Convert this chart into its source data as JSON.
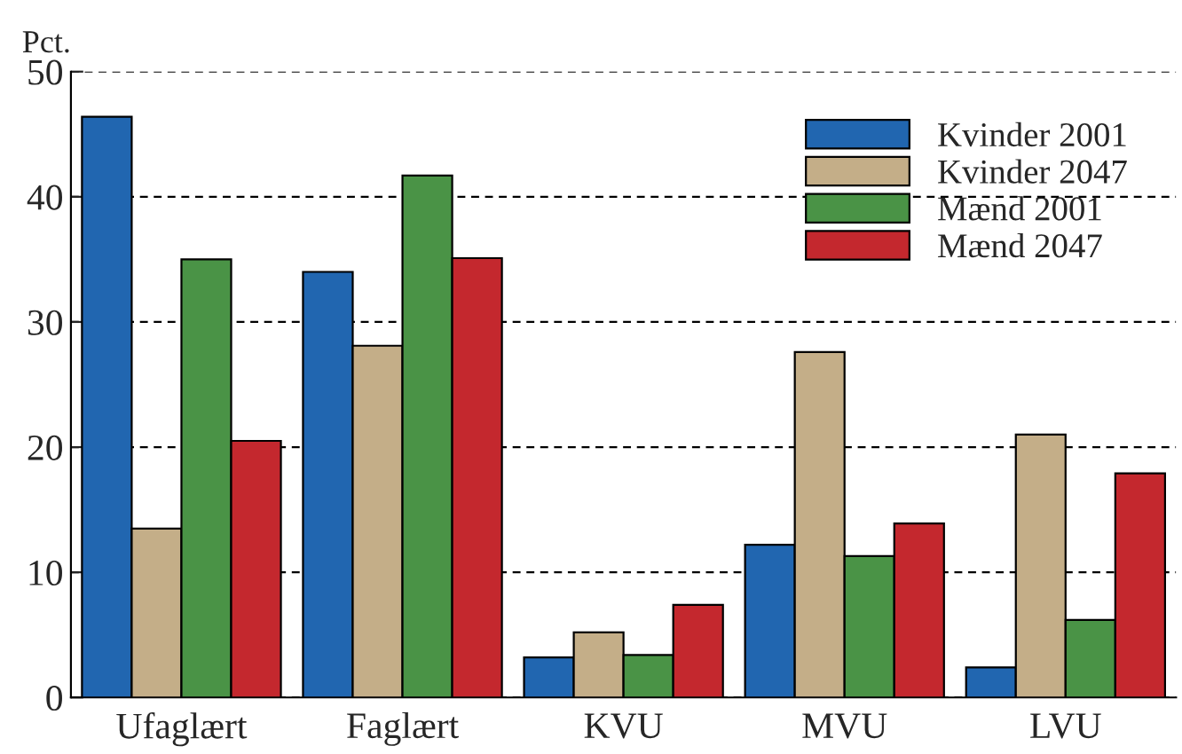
{
  "chart_data": {
    "type": "bar",
    "ylabel": "Pct.",
    "categories": [
      "Ufaglært",
      "Faglært",
      "KVU",
      "MVU",
      "LVU"
    ],
    "series": [
      {
        "name": "Kvinder 2001",
        "color": "#2166b0",
        "values": [
          46.4,
          34.0,
          3.2,
          12.2,
          2.4
        ]
      },
      {
        "name": "Kvinder 2047",
        "color": "#c4ae88",
        "values": [
          13.5,
          28.1,
          5.2,
          27.6,
          21.0
        ]
      },
      {
        "name": "Mænd 2001",
        "color": "#4a9346",
        "values": [
          35.0,
          41.7,
          3.4,
          11.3,
          6.2
        ]
      },
      {
        "name": "Mænd 2047",
        "color": "#c4282e",
        "values": [
          20.5,
          35.1,
          7.4,
          13.9,
          17.9
        ]
      }
    ],
    "ylim": [
      0,
      50
    ],
    "yticks": [
      0,
      10,
      20,
      30,
      40,
      50
    ],
    "grid": "y",
    "legend": "top right"
  }
}
